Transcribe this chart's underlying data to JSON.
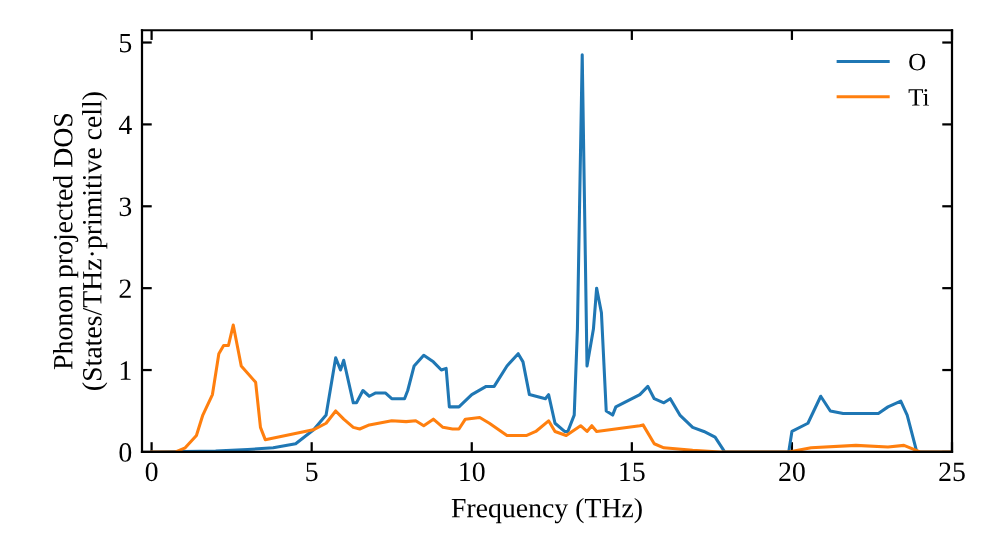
{
  "chart_data": {
    "type": "line",
    "xlabel": "Frequency (THz)",
    "ylabel": "Phonon projected DOS\n(States/THz·primitive cell)",
    "xlim": [
      -0.3,
      25
    ],
    "ylim": [
      0,
      5.15
    ],
    "xticks": [
      0,
      5,
      10,
      15,
      20,
      25
    ],
    "yticks": [
      0,
      1,
      2,
      3,
      4,
      5
    ],
    "grid": false,
    "legend": "top right",
    "marker": "none",
    "line_style": "solid",
    "series": [
      {
        "name": "O",
        "color": "#1f77b4",
        "x": [
          0,
          2,
          3,
          3.8,
          4.5,
          5.06,
          5.45,
          5.75,
          5.9,
          6.0,
          6.3,
          6.4,
          6.6,
          6.8,
          7.0,
          7.3,
          7.5,
          7.9,
          8.0,
          8.2,
          8.5,
          8.8,
          9.05,
          9.2,
          9.3,
          9.6,
          10.0,
          10.45,
          10.7,
          11.1,
          11.45,
          11.6,
          11.8,
          12.3,
          12.4,
          12.6,
          12.9,
          13.0,
          13.2,
          13.3,
          13.45,
          13.6,
          13.8,
          13.9,
          14.05,
          14.2,
          14.4,
          14.5,
          15.25,
          15.5,
          15.7,
          16.0,
          16.2,
          16.5,
          16.9,
          17.25,
          17.6,
          17.9,
          19.9,
          20.0,
          20.5,
          20.9,
          21.2,
          21.6,
          22.7,
          23.0,
          23.4,
          23.6,
          23.9,
          25
        ],
        "values": [
          0,
          0.01,
          0.03,
          0.05,
          0.1,
          0.27,
          0.45,
          1.15,
          1.0,
          1.12,
          0.6,
          0.6,
          0.75,
          0.68,
          0.72,
          0.72,
          0.65,
          0.65,
          0.75,
          1.05,
          1.18,
          1.1,
          1.0,
          1.02,
          0.55,
          0.55,
          0.7,
          0.8,
          0.8,
          1.05,
          1.2,
          1.1,
          0.7,
          0.65,
          0.7,
          0.35,
          0.25,
          0.25,
          0.45,
          1.5,
          4.85,
          1.05,
          1.5,
          2.0,
          1.7,
          0.5,
          0.45,
          0.55,
          0.7,
          0.8,
          0.65,
          0.6,
          0.65,
          0.45,
          0.3,
          0.25,
          0.18,
          0,
          0,
          0.25,
          0.35,
          0.68,
          0.5,
          0.47,
          0.47,
          0.55,
          0.62,
          0.45,
          0,
          0
        ]
      },
      {
        "name": "Ti",
        "color": "#ff7f0e",
        "x": [
          0,
          0.75,
          1.05,
          1.4,
          1.6,
          1.9,
          2.1,
          2.25,
          2.4,
          2.55,
          2.8,
          3.25,
          3.4,
          3.55,
          5.05,
          5.45,
          5.75,
          6.0,
          6.3,
          6.5,
          6.8,
          7.5,
          7.95,
          8.25,
          8.5,
          8.8,
          9.1,
          9.4,
          9.6,
          9.8,
          10.25,
          10.55,
          11.1,
          11.7,
          12.0,
          12.4,
          12.6,
          12.95,
          13.4,
          13.6,
          13.75,
          13.9,
          15.25,
          15.35,
          15.7,
          16.0,
          16.9,
          17.75,
          19.9,
          20.6,
          22.0,
          23.0,
          23.5,
          24.0,
          25
        ],
        "values": [
          0,
          0,
          0.05,
          0.2,
          0.45,
          0.7,
          1.2,
          1.3,
          1.3,
          1.55,
          1.05,
          0.85,
          0.3,
          0.15,
          0.27,
          0.35,
          0.5,
          0.4,
          0.3,
          0.28,
          0.33,
          0.38,
          0.37,
          0.38,
          0.32,
          0.4,
          0.3,
          0.28,
          0.28,
          0.4,
          0.42,
          0.35,
          0.2,
          0.2,
          0.25,
          0.38,
          0.25,
          0.2,
          0.32,
          0.25,
          0.32,
          0.25,
          0.32,
          0.33,
          0.1,
          0.05,
          0.02,
          0,
          0,
          0.05,
          0.08,
          0.06,
          0.08,
          0,
          0
        ]
      }
    ]
  }
}
